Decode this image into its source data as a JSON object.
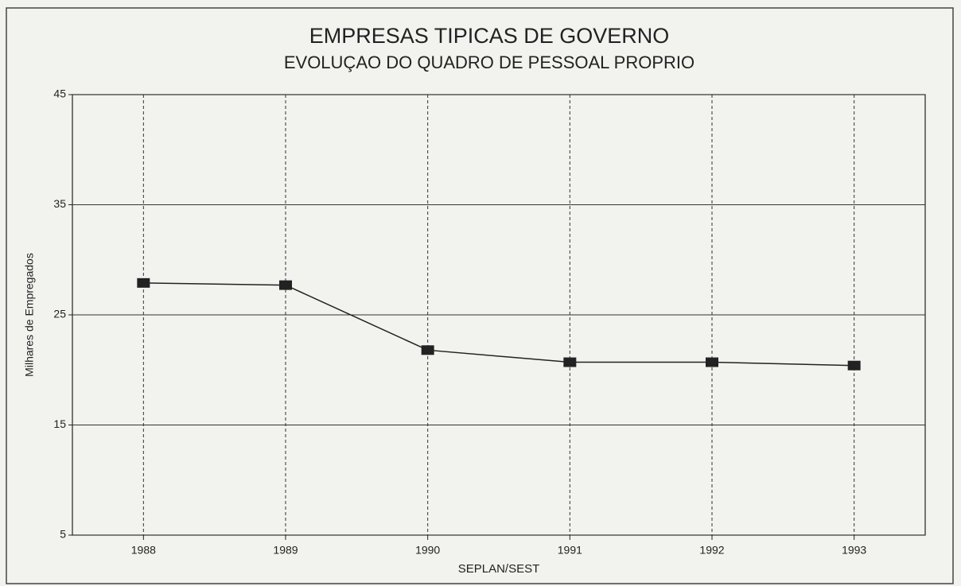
{
  "chart_data": {
    "type": "line",
    "title": "EMPRESAS TIPICAS DE GOVERNO",
    "subtitle": "EVOLUÇAO DO QUADRO DE PESSOAL PROPRIO",
    "y_label": "Milhares de Empregados",
    "x_label": "SEPLAN/SEST",
    "x": [
      1988,
      1989,
      1990,
      1991,
      1992,
      1993
    ],
    "series": [
      {
        "color": "#222222",
        "values": [
          27.9,
          27.7,
          21.8,
          20.7,
          20.7,
          20.4
        ]
      }
    ],
    "xlim": [
      1987.5,
      1993.5
    ],
    "xticks": [
      1988,
      1989,
      1990,
      1991,
      1992,
      1993
    ],
    "ylim": [
      5,
      45
    ],
    "yticks": [
      5,
      15,
      25,
      35,
      45
    ],
    "grid": true
  }
}
